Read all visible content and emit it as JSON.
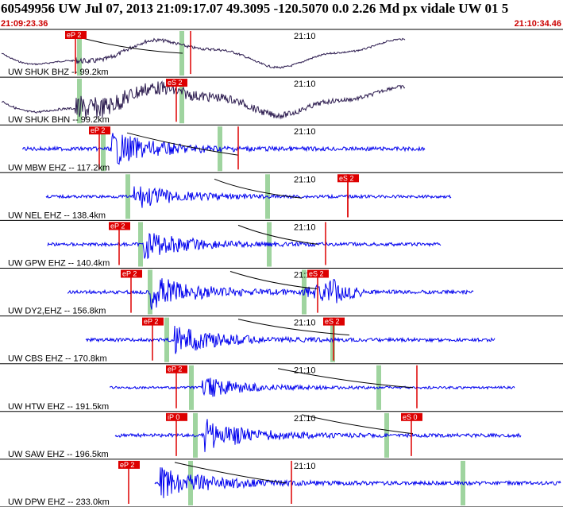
{
  "header": {
    "title": "60549956 UW Jul 07, 2013 21:09:17.07    49.3095 -120.5070  0.0 2.26 Md px vidale UW 01    5",
    "start_time": "21:09:23.36",
    "end_time": "21:10:34.46"
  },
  "colors": {
    "trace_blue": "#0000ee",
    "trace_dark": "#2b1a4e",
    "pick_red": "#dd0000",
    "highlight_green": "#9fd49f",
    "separator": "#000000"
  },
  "traces": [
    {
      "label": "UW SHUK BHZ -- 99.2km",
      "minute_label": "21:10",
      "color": "trace_dark",
      "picks": [
        {
          "label": "eP 2",
          "kind": "p"
        },
        {
          "label": "",
          "kind": "s"
        }
      ]
    },
    {
      "label": "UW SHUK BHN -- 99.2km",
      "minute_label": "21:10",
      "color": "trace_dark",
      "picks": [
        {
          "label": "eS 2",
          "kind": "s"
        }
      ]
    },
    {
      "label": "UW MBW EHZ -- 117.2km",
      "minute_label": "21:10",
      "color": "trace_blue",
      "picks": [
        {
          "label": "eP 2",
          "kind": "p"
        },
        {
          "label": "",
          "kind": "s"
        }
      ]
    },
    {
      "label": "UW NEL EHZ -- 138.4km",
      "minute_label": "21:10",
      "color": "trace_blue",
      "picks": [
        {
          "label": "eS 2",
          "kind": "s"
        },
        {
          "label": "",
          "kind": "x"
        }
      ]
    },
    {
      "label": "UW GPW EHZ -- 140.4km",
      "minute_label": "21:10",
      "color": "trace_blue",
      "picks": [
        {
          "label": "eP 2",
          "kind": "p"
        },
        {
          "label": "",
          "kind": "s"
        }
      ]
    },
    {
      "label": "UW DY2,EHZ -- 156.8km",
      "minute_label": "21:10",
      "color": "trace_blue",
      "picks": [
        {
          "label": "eP 2",
          "kind": "p"
        },
        {
          "label": "eS 2",
          "kind": "s"
        }
      ]
    },
    {
      "label": "UW CBS EHZ -- 170.8km",
      "minute_label": "21:10",
      "color": "trace_blue",
      "picks": [
        {
          "label": "eP 2",
          "kind": "p"
        },
        {
          "label": "eS 2",
          "kind": "s"
        }
      ]
    },
    {
      "label": "UW HTW EHZ -- 191.5km",
      "minute_label": "21:10",
      "color": "trace_blue",
      "picks": [
        {
          "label": "eP 2",
          "kind": "p"
        },
        {
          "label": "",
          "kind": "s"
        }
      ]
    },
    {
      "label": "UW SAW EHZ -- 196.5km",
      "minute_label": "21:10",
      "color": "trace_blue",
      "picks": [
        {
          "label": "iP 0",
          "kind": "p"
        },
        {
          "label": "eS 0",
          "kind": "s"
        }
      ]
    },
    {
      "label": "UW DPW EHZ -- 233.0km",
      "minute_label": "21:10",
      "color": "trace_blue",
      "picks": [
        {
          "label": "eP 2",
          "kind": "p"
        },
        {
          "label": "",
          "kind": "s"
        }
      ]
    }
  ]
}
